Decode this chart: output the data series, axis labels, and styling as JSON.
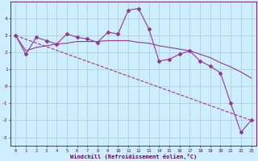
{
  "xlabel": "Windchill (Refroidissement éolien,°C)",
  "background_color": "#cceeff",
  "grid_color": "#aacccc",
  "line_color": "#993399",
  "xlim": [
    -0.5,
    23.5
  ],
  "ylim": [
    -3.5,
    5.0
  ],
  "yticks": [
    -3,
    -2,
    -1,
    0,
    1,
    2,
    3,
    4
  ],
  "xticks": [
    0,
    1,
    2,
    3,
    4,
    5,
    6,
    7,
    8,
    9,
    10,
    11,
    12,
    13,
    14,
    15,
    16,
    17,
    18,
    19,
    20,
    21,
    22,
    23
  ],
  "series1_x": [
    0,
    1,
    2,
    3,
    4,
    5,
    6,
    7,
    8,
    9,
    10,
    11,
    12,
    13,
    14,
    15,
    16,
    17,
    18,
    19,
    20,
    21,
    22,
    23
  ],
  "series1_y": [
    3.0,
    1.9,
    2.9,
    2.7,
    2.5,
    3.1,
    2.9,
    2.8,
    2.6,
    3.2,
    3.1,
    4.5,
    4.6,
    3.4,
    1.5,
    1.6,
    1.9,
    2.1,
    1.5,
    1.2,
    0.8,
    -1.0,
    -2.7,
    -2.0
  ],
  "series2_x": [
    0,
    1,
    2,
    3,
    4,
    5,
    6,
    7,
    8,
    9,
    10,
    11,
    12,
    13,
    14,
    15,
    16,
    17,
    18,
    19,
    20,
    21,
    22,
    23
  ],
  "series2_y": [
    3.0,
    2.1,
    2.3,
    2.4,
    2.5,
    2.55,
    2.65,
    2.65,
    2.65,
    2.7,
    2.7,
    2.7,
    2.6,
    2.55,
    2.4,
    2.3,
    2.2,
    2.1,
    1.9,
    1.7,
    1.4,
    1.15,
    0.85,
    0.5
  ],
  "series3_x": [
    0,
    23
  ],
  "series3_y": [
    3.0,
    -2.0
  ],
  "tick_fontsize": 4.0,
  "xlabel_fontsize": 5.0
}
